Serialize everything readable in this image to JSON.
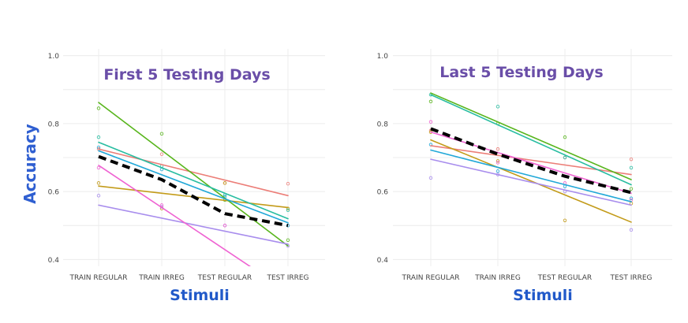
{
  "ylabel": "Accuracy",
  "colors": {
    "red": "#ec7e78",
    "olive": "#c39b19",
    "green": "#58b51c",
    "teal": "#28bda1",
    "cyan": "#21a8d8",
    "purple": "#a88ded",
    "pink": "#ef63d2",
    "mean": "#000000",
    "title": "#6a4ea8",
    "axis_title": "#2159c9",
    "ylabel": "#2f5fd1",
    "tick": "#444444",
    "grid": "#ececec"
  },
  "chart_data": [
    {
      "type": "line",
      "title": "First 5 Testing Days",
      "xlabel": "Stimuli",
      "ylabel": "Accuracy",
      "categories": [
        "TRAIN REGULAR",
        "TRAIN IRREG",
        "TEST REGULAR",
        "TEST IRREG"
      ],
      "yticks": [
        "0.4",
        "0.6",
        "0.8",
        "1.0"
      ],
      "ylim": [
        0.38,
        1.02
      ],
      "grid": true,
      "series": [
        {
          "color_key": "red",
          "style": "fitted",
          "fit": [
            0.725,
            0.588
          ],
          "points": [
            0.725,
            0.71,
            0.625,
            0.623
          ]
        },
        {
          "color_key": "olive",
          "style": "fitted",
          "fit": [
            0.616,
            0.553
          ],
          "points": [
            0.625,
            0.55,
            0.625,
            0.55
          ]
        },
        {
          "color_key": "green",
          "style": "fitted",
          "fit": [
            0.862,
            0.44
          ],
          "points": [
            0.845,
            0.77,
            0.575,
            0.457
          ]
        },
        {
          "color_key": "teal",
          "style": "fitted",
          "fit": [
            0.745,
            0.52
          ],
          "points": [
            0.76,
            0.675,
            0.59,
            0.545
          ]
        },
        {
          "color_key": "cyan",
          "style": "fitted",
          "fit": [
            0.72,
            0.508
          ],
          "points": [
            0.73,
            0.665,
            0.585,
            0.5
          ]
        },
        {
          "color_key": "purple",
          "style": "fitted",
          "fit": [
            0.56,
            0.445
          ],
          "points": [
            0.588,
            0.555,
            0.5,
            0.44
          ]
        },
        {
          "color_key": "pink",
          "style": "fitted",
          "fit": [
            0.677,
            0.305
          ],
          "points": [
            0.67,
            0.56,
            0.5,
            0.33
          ]
        },
        {
          "color_key": "mean",
          "style": "mean",
          "points": [
            0.703,
            0.635,
            0.535,
            0.5
          ]
        }
      ]
    },
    {
      "type": "line",
      "title": "Last 5 Testing Days",
      "xlabel": "Stimuli",
      "ylabel": "Accuracy",
      "categories": [
        "TRAIN REGULAR",
        "TRAIN IRREG",
        "TEST REGULAR",
        "TEST IRREG"
      ],
      "yticks": [
        "0.4",
        "0.6",
        "0.8",
        "1.0"
      ],
      "ylim": [
        0.38,
        1.02
      ],
      "grid": true,
      "series": [
        {
          "color_key": "red",
          "style": "fitted",
          "fit": [
            0.735,
            0.65
          ],
          "points": [
            0.78,
            0.725,
            0.7,
            0.695
          ]
        },
        {
          "color_key": "olive",
          "style": "fitted",
          "fit": [
            0.752,
            0.51
          ],
          "points": [
            0.775,
            0.69,
            0.515,
            0.565
          ]
        },
        {
          "color_key": "green",
          "style": "fitted",
          "fit": [
            0.89,
            0.635
          ],
          "points": [
            0.865,
            0.8,
            0.76,
            0.608
          ]
        },
        {
          "color_key": "teal",
          "style": "fitted",
          "fit": [
            0.885,
            0.62
          ],
          "points": [
            0.885,
            0.85,
            0.7,
            0.67
          ]
        },
        {
          "color_key": "cyan",
          "style": "fitted",
          "fit": [
            0.722,
            0.57
          ],
          "points": [
            0.738,
            0.66,
            0.615,
            0.58
          ]
        },
        {
          "color_key": "purple",
          "style": "fitted",
          "fit": [
            0.695,
            0.56
          ],
          "points": [
            0.64,
            0.65,
            0.6,
            0.487
          ]
        },
        {
          "color_key": "pink",
          "style": "fitted",
          "fit": [
            0.775,
            0.595
          ],
          "points": [
            0.805,
            0.685,
            0.625,
            0.575
          ]
        },
        {
          "color_key": "mean",
          "style": "mean",
          "points": [
            0.785,
            0.71,
            0.645,
            0.597
          ]
        }
      ]
    }
  ]
}
